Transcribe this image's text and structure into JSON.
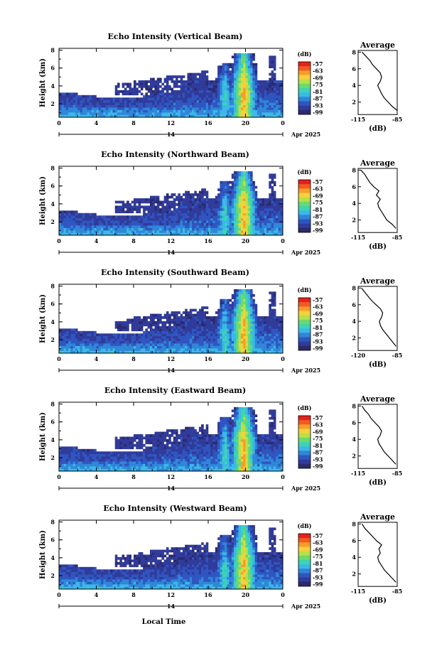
{
  "chart_data": {
    "type": "heatmap",
    "time_ticks": [
      "0",
      "4",
      "8",
      "12",
      "16",
      "20",
      "0"
    ],
    "day_label": "14",
    "date_label": "Apr 2025",
    "xlabel": "Local Time",
    "ylabel": "Height (km)",
    "height_ticks": [
      "2",
      "4",
      "6",
      "8"
    ],
    "ylim": [
      0.5,
      8.2
    ],
    "colorbar": {
      "unit": "(dB)",
      "labels": [
        "-57",
        "-63",
        "-69",
        "-75",
        "-81",
        "-87",
        "-93",
        "-99"
      ],
      "colors": [
        "#e8201c",
        "#f25a22",
        "#f79c2a",
        "#f3d23a",
        "#b8e04a",
        "#6fd86a",
        "#3cd5b0",
        "#3ab8e8",
        "#2f86d8",
        "#2f55c0",
        "#303b9a",
        "#2b2a6e"
      ]
    },
    "average_title": "Average",
    "average_unit": "(dB)",
    "panels": [
      {
        "title": "Echo Intensity (Vertical Beam)",
        "avg_xticks": [
          "-115",
          "-85"
        ],
        "avg_xrange": [
          -115,
          -85
        ],
        "avg_profile": [
          [
            1.0,
            -85
          ],
          [
            1.5,
            -89
          ],
          [
            2.0,
            -92
          ],
          [
            2.5,
            -95
          ],
          [
            3.0,
            -97
          ],
          [
            3.5,
            -98.5
          ],
          [
            4.0,
            -100
          ],
          [
            4.5,
            -98
          ],
          [
            5.0,
            -97
          ],
          [
            5.5,
            -98
          ],
          [
            6.0,
            -101
          ],
          [
            6.5,
            -104
          ],
          [
            7.0,
            -106
          ],
          [
            7.5,
            -109
          ],
          [
            8.0,
            -112
          ]
        ]
      },
      {
        "title": "Echo Intensity (Northward Beam)",
        "avg_xticks": [
          "-115",
          "-85"
        ],
        "avg_xrange": [
          -115,
          -85
        ],
        "avg_profile": [
          [
            1.0,
            -86
          ],
          [
            1.5,
            -89
          ],
          [
            2.0,
            -93
          ],
          [
            2.5,
            -95
          ],
          [
            3.0,
            -97
          ],
          [
            3.5,
            -99
          ],
          [
            4.0,
            -100
          ],
          [
            4.5,
            -98
          ],
          [
            5.0,
            -101
          ],
          [
            5.5,
            -99
          ],
          [
            6.0,
            -103
          ],
          [
            6.5,
            -106
          ],
          [
            7.0,
            -108
          ],
          [
            7.5,
            -110
          ],
          [
            8.0,
            -113
          ]
        ]
      },
      {
        "title": "Echo Intensity (Southward Beam)",
        "avg_xticks": [
          "-120",
          "-85"
        ],
        "avg_xrange": [
          -120,
          -85
        ],
        "avg_profile": [
          [
            1.0,
            -86
          ],
          [
            1.5,
            -89
          ],
          [
            2.0,
            -92
          ],
          [
            2.5,
            -95
          ],
          [
            3.0,
            -98
          ],
          [
            3.5,
            -100
          ],
          [
            4.0,
            -101
          ],
          [
            4.5,
            -99
          ],
          [
            5.0,
            -98
          ],
          [
            5.5,
            -100
          ],
          [
            6.0,
            -104
          ],
          [
            6.5,
            -108
          ],
          [
            7.0,
            -111
          ],
          [
            7.5,
            -114
          ],
          [
            8.0,
            -117
          ]
        ]
      },
      {
        "title": "Echo Intensity (Eastward Beam)",
        "avg_xticks": [
          "-115",
          "-85"
        ],
        "avg_xrange": [
          -115,
          -85
        ],
        "avg_profile": [
          [
            1.0,
            -86
          ],
          [
            1.5,
            -89
          ],
          [
            2.0,
            -92
          ],
          [
            2.5,
            -95
          ],
          [
            3.0,
            -97
          ],
          [
            3.5,
            -99
          ],
          [
            4.0,
            -100
          ],
          [
            4.5,
            -98
          ],
          [
            5.0,
            -97
          ],
          [
            5.5,
            -99
          ],
          [
            6.0,
            -102
          ],
          [
            6.5,
            -105
          ],
          [
            7.0,
            -107
          ],
          [
            7.5,
            -110
          ],
          [
            8.0,
            -112
          ]
        ]
      },
      {
        "title": "Echo Intensity (Westward Beam)",
        "avg_xticks": [
          "-115",
          "-85"
        ],
        "avg_xrange": [
          -115,
          -85
        ],
        "avg_profile": [
          [
            1.0,
            -86
          ],
          [
            1.5,
            -89
          ],
          [
            2.0,
            -92
          ],
          [
            2.5,
            -95
          ],
          [
            3.0,
            -97
          ],
          [
            3.5,
            -99
          ],
          [
            4.0,
            -100
          ],
          [
            4.5,
            -98
          ],
          [
            5.0,
            -99
          ],
          [
            5.5,
            -97
          ],
          [
            6.0,
            -101
          ],
          [
            6.5,
            -104
          ],
          [
            7.0,
            -107
          ],
          [
            7.5,
            -110
          ],
          [
            8.0,
            -112
          ]
        ]
      }
    ]
  }
}
